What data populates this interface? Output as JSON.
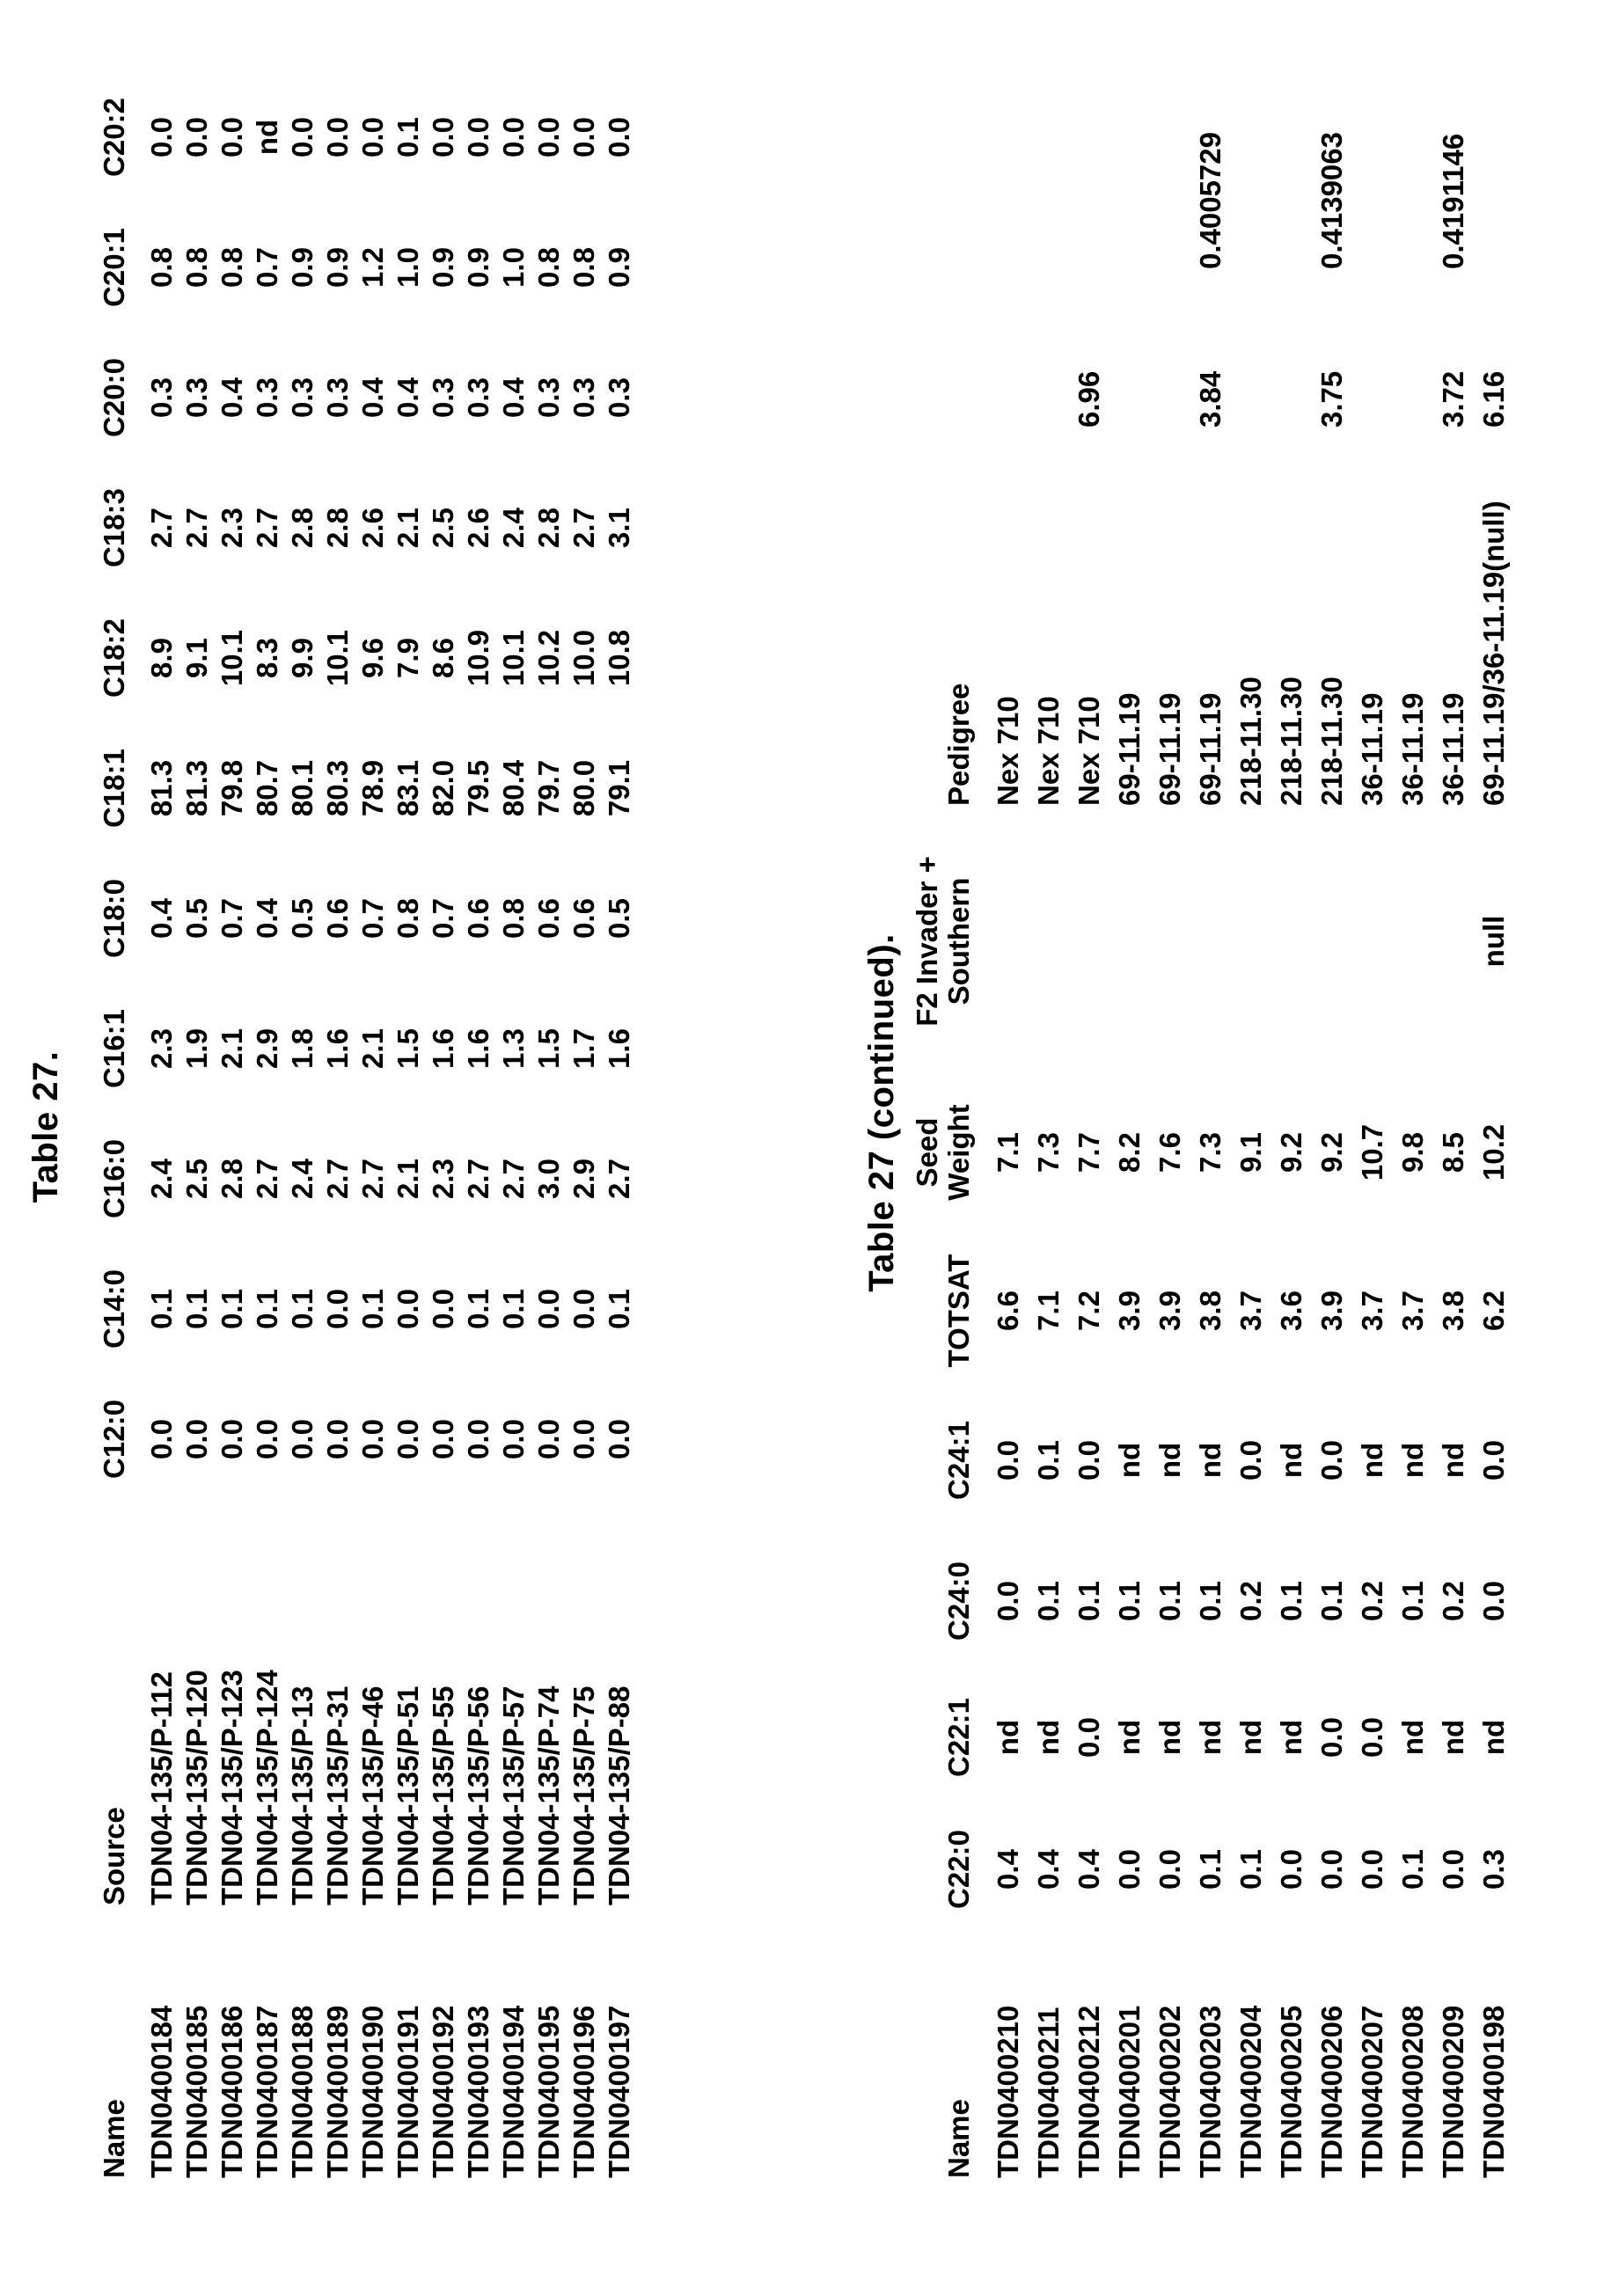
{
  "captions": {
    "table1": "Table 27.",
    "table2": "Table 27 (continued)."
  },
  "table1": {
    "columns": [
      "Name",
      "Source",
      "C12:0",
      "C14:0",
      "C16:0",
      "C16:1",
      "C18:0",
      "C18:1",
      "C18:2",
      "C18:3",
      "C20:0",
      "C20:1",
      "C20:2"
    ],
    "rows": [
      [
        "TDN0400184",
        "TDN04-135/P-112",
        "0.0",
        "0.1",
        "2.4",
        "2.3",
        "0.4",
        "81.3",
        "8.9",
        "2.7",
        "0.3",
        "0.8",
        "0.0"
      ],
      [
        "TDN0400185",
        "TDN04-135/P-120",
        "0.0",
        "0.1",
        "2.5",
        "1.9",
        "0.5",
        "81.3",
        "9.1",
        "2.7",
        "0.3",
        "0.8",
        "0.0"
      ],
      [
        "TDN0400186",
        "TDN04-135/P-123",
        "0.0",
        "0.1",
        "2.8",
        "2.1",
        "0.7",
        "79.8",
        "10.1",
        "2.3",
        "0.4",
        "0.8",
        "0.0"
      ],
      [
        "TDN0400187",
        "TDN04-135/P-124",
        "0.0",
        "0.1",
        "2.7",
        "2.9",
        "0.4",
        "80.7",
        "8.3",
        "2.7",
        "0.3",
        "0.7",
        "nd"
      ],
      [
        "TDN0400188",
        "TDN04-135/P-13",
        "0.0",
        "0.1",
        "2.4",
        "1.8",
        "0.5",
        "80.1",
        "9.9",
        "2.8",
        "0.3",
        "0.9",
        "0.0"
      ],
      [
        "TDN0400189",
        "TDN04-135/P-31",
        "0.0",
        "0.0",
        "2.7",
        "1.6",
        "0.6",
        "80.3",
        "10.1",
        "2.8",
        "0.3",
        "0.9",
        "0.0"
      ],
      [
        "TDN0400190",
        "TDN04-135/P-46",
        "0.0",
        "0.1",
        "2.7",
        "2.1",
        "0.7",
        "78.9",
        "9.6",
        "2.6",
        "0.4",
        "1.2",
        "0.0"
      ],
      [
        "TDN0400191",
        "TDN04-135/P-51",
        "0.0",
        "0.0",
        "2.1",
        "1.5",
        "0.8",
        "83.1",
        "7.9",
        "2.1",
        "0.4",
        "1.0",
        "0.1"
      ],
      [
        "TDN0400192",
        "TDN04-135/P-55",
        "0.0",
        "0.0",
        "2.3",
        "1.6",
        "0.7",
        "82.0",
        "8.6",
        "2.5",
        "0.3",
        "0.9",
        "0.0"
      ],
      [
        "TDN0400193",
        "TDN04-135/P-56",
        "0.0",
        "0.1",
        "2.7",
        "1.6",
        "0.6",
        "79.5",
        "10.9",
        "2.6",
        "0.3",
        "0.9",
        "0.0"
      ],
      [
        "TDN0400194",
        "TDN04-135/P-57",
        "0.0",
        "0.1",
        "2.7",
        "1.3",
        "0.8",
        "80.4",
        "10.1",
        "2.4",
        "0.4",
        "1.0",
        "0.0"
      ],
      [
        "TDN0400195",
        "TDN04-135/P-74",
        "0.0",
        "0.0",
        "3.0",
        "1.5",
        "0.6",
        "79.7",
        "10.2",
        "2.8",
        "0.3",
        "0.8",
        "0.0"
      ],
      [
        "TDN0400196",
        "TDN04-135/P-75",
        "0.0",
        "0.0",
        "2.9",
        "1.7",
        "0.6",
        "80.0",
        "10.0",
        "2.7",
        "0.3",
        "0.8",
        "0.0"
      ],
      [
        "TDN0400197",
        "TDN04-135/P-88",
        "0.0",
        "0.1",
        "2.7",
        "1.6",
        "0.5",
        "79.1",
        "10.8",
        "3.1",
        "0.3",
        "0.9",
        "0.0"
      ]
    ]
  },
  "table2": {
    "columns": [
      "Name",
      "C22:0",
      "C22:1",
      "C24:0",
      "C24:1",
      "TOTSAT",
      "Seed\nWeight",
      "F2 Invader +\nSouthern",
      "Pedigree",
      "",
      ""
    ],
    "rows": [
      [
        "TDN0400210",
        "0.4",
        "nd",
        "0.0",
        "0.0",
        "6.6",
        "7.1",
        "",
        "Nex 710",
        "",
        ""
      ],
      [
        "TDN0400211",
        "0.4",
        "nd",
        "0.1",
        "0.1",
        "7.1",
        "7.3",
        "",
        "Nex 710",
        "",
        ""
      ],
      [
        "TDN0400212",
        "0.4",
        "0.0",
        "0.1",
        "0.0",
        "7.2",
        "7.7",
        "",
        "Nex 710",
        "6.96",
        ""
      ],
      [
        "TDN0400201",
        "0.0",
        "nd",
        "0.1",
        "nd",
        "3.9",
        "8.2",
        "",
        "69-11.19",
        "",
        ""
      ],
      [
        "TDN0400202",
        "0.0",
        "nd",
        "0.1",
        "nd",
        "3.9",
        "7.6",
        "",
        "69-11.19",
        "",
        ""
      ],
      [
        "TDN0400203",
        "0.1",
        "nd",
        "0.1",
        "nd",
        "3.8",
        "7.3",
        "",
        "69-11.19",
        "3.84",
        "0.4005729"
      ],
      [
        "TDN0400204",
        "0.1",
        "nd",
        "0.2",
        "0.0",
        "3.7",
        "9.1",
        "",
        "218-11.30",
        "",
        ""
      ],
      [
        "TDN0400205",
        "0.0",
        "nd",
        "0.1",
        "nd",
        "3.6",
        "9.2",
        "",
        "218-11.30",
        "",
        ""
      ],
      [
        "TDN0400206",
        "0.0",
        "0.0",
        "0.1",
        "0.0",
        "3.9",
        "9.2",
        "",
        "218-11.30",
        "3.75",
        "0.4139063"
      ],
      [
        "TDN0400207",
        "0.0",
        "0.0",
        "0.2",
        "nd",
        "3.7",
        "10.7",
        "",
        "36-11.19",
        "",
        ""
      ],
      [
        "TDN0400208",
        "0.1",
        "nd",
        "0.1",
        "nd",
        "3.7",
        "9.8",
        "",
        "36-11.19",
        "",
        ""
      ],
      [
        "TDN0400209",
        "0.0",
        "nd",
        "0.2",
        "nd",
        "3.8",
        "8.5",
        "",
        "36-11.19",
        "3.72",
        "0.4191146"
      ],
      [
        "TDN0400198",
        "0.3",
        "nd",
        "0.0",
        "0.0",
        "6.2",
        "10.2",
        "null",
        "69-11.19/36-11.19(null)",
        "6.16",
        ""
      ]
    ]
  }
}
